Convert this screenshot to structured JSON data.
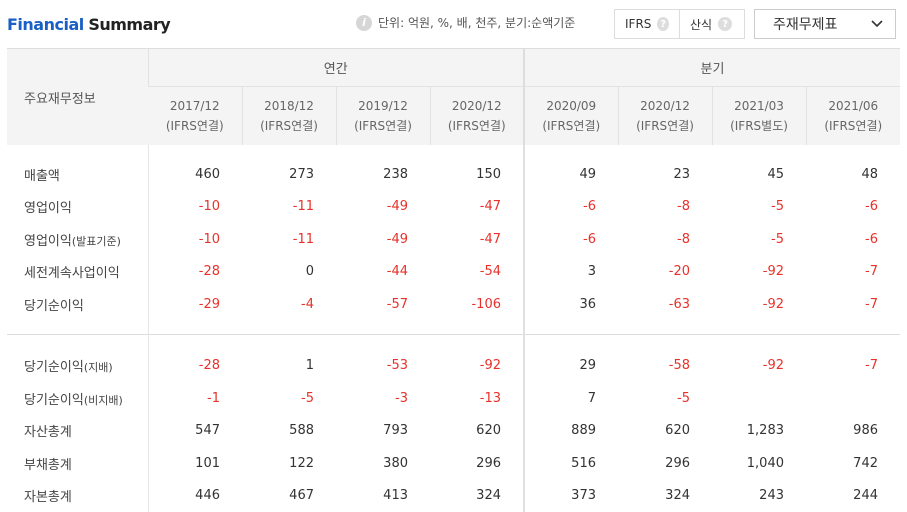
{
  "header": {
    "title_part1": "Financial",
    "title_part2": "Summary",
    "unit_text": "단위: 억원, %, 배, 천주, 분기:순액기준",
    "opt_ifrs": "IFRS",
    "opt_formula": "산식",
    "select_value": "주재무제표"
  },
  "table": {
    "label_header": "주요재무정보",
    "group_annual": "연간",
    "group_quarter": "분기",
    "columns": [
      {
        "period": "2017/12",
        "basis": "(IFRS연결)"
      },
      {
        "period": "2018/12",
        "basis": "(IFRS연결)"
      },
      {
        "period": "2019/12",
        "basis": "(IFRS연결)"
      },
      {
        "period": "2020/12",
        "basis": "(IFRS연결)"
      },
      {
        "period": "2020/09",
        "basis": "(IFRS연결)"
      },
      {
        "period": "2020/12",
        "basis": "(IFRS연결)"
      },
      {
        "period": "2021/03",
        "basis": "(IFRS별도)"
      },
      {
        "period": "2021/06",
        "basis": "(IFRS연결)"
      }
    ],
    "rows_group1": [
      {
        "label": "매출액",
        "sub": "",
        "values": [
          "460",
          "273",
          "238",
          "150",
          "49",
          "23",
          "45",
          "48"
        ]
      },
      {
        "label": "영업이익",
        "sub": "",
        "values": [
          "-10",
          "-11",
          "-49",
          "-47",
          "-6",
          "-8",
          "-5",
          "-6"
        ]
      },
      {
        "label": "영업이익",
        "sub": "(발표기준)",
        "values": [
          "-10",
          "-11",
          "-49",
          "-47",
          "-6",
          "-8",
          "-5",
          "-6"
        ]
      },
      {
        "label": "세전계속사업이익",
        "sub": "",
        "values": [
          "-28",
          "0",
          "-44",
          "-54",
          "3",
          "-20",
          "-92",
          "-7"
        ]
      },
      {
        "label": "당기순이익",
        "sub": "",
        "values": [
          "-29",
          "-4",
          "-57",
          "-106",
          "36",
          "-63",
          "-92",
          "-7"
        ]
      }
    ],
    "rows_group2": [
      {
        "label": "당기순이익",
        "sub": "(지배)",
        "values": [
          "-28",
          "1",
          "-53",
          "-92",
          "29",
          "-58",
          "-92",
          "-7"
        ]
      },
      {
        "label": "당기순이익",
        "sub": "(비지배)",
        "values": [
          "-1",
          "-5",
          "-3",
          "-13",
          "7",
          "-5",
          "",
          ""
        ]
      },
      {
        "label": "자산총계",
        "sub": "",
        "values": [
          "547",
          "588",
          "793",
          "620",
          "889",
          "620",
          "1,283",
          "986"
        ]
      },
      {
        "label": "부채총계",
        "sub": "",
        "values": [
          "101",
          "122",
          "380",
          "296",
          "516",
          "296",
          "1,040",
          "742"
        ]
      },
      {
        "label": "자본총계",
        "sub": "",
        "values": [
          "446",
          "467",
          "413",
          "324",
          "373",
          "324",
          "243",
          "244"
        ]
      }
    ]
  }
}
